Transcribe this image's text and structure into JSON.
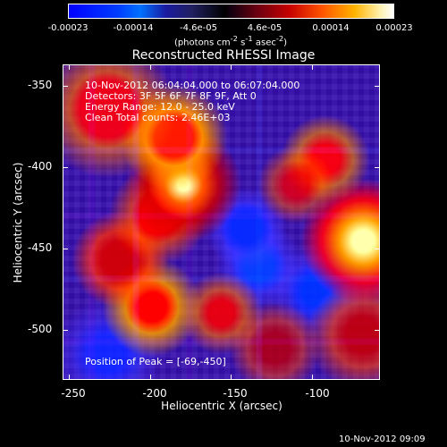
{
  "colorbar": {
    "ticks": [
      "-0.00023",
      "-0.00014",
      "-4.6e-05",
      "4.6e-05",
      "0.00014",
      "0.00023"
    ],
    "units_label": "(photons cm",
    "units_exp1": "-2",
    "units_mid1": " s",
    "units_exp2": "-1",
    "units_mid2": " asec",
    "units_exp3": "-2",
    "units_end": ")"
  },
  "plot": {
    "title": "Reconstructed RHESSI Image",
    "info_lines": [
      "10-Nov-2012 06:04:04.000 to 06:07:04.000",
      "Detectors: 3F 5F 6F 7F 8F 9F, Att 0",
      "Energy Range: 12.0 - 25.0 keV",
      "Clean    Total counts: 2.46E+03"
    ],
    "peak_text": "Position of Peak = [-69,-450]",
    "x_axis_label": "Heliocentric X (arcsec)",
    "y_axis_label": "Heliocentric Y (arcsec)",
    "x_ticks": [
      "-250",
      "-200",
      "-150",
      "-100"
    ],
    "y_ticks": [
      "-350",
      "-400",
      "-450",
      "-500"
    ],
    "timestamp": "10-Nov-2012 09:09"
  }
}
